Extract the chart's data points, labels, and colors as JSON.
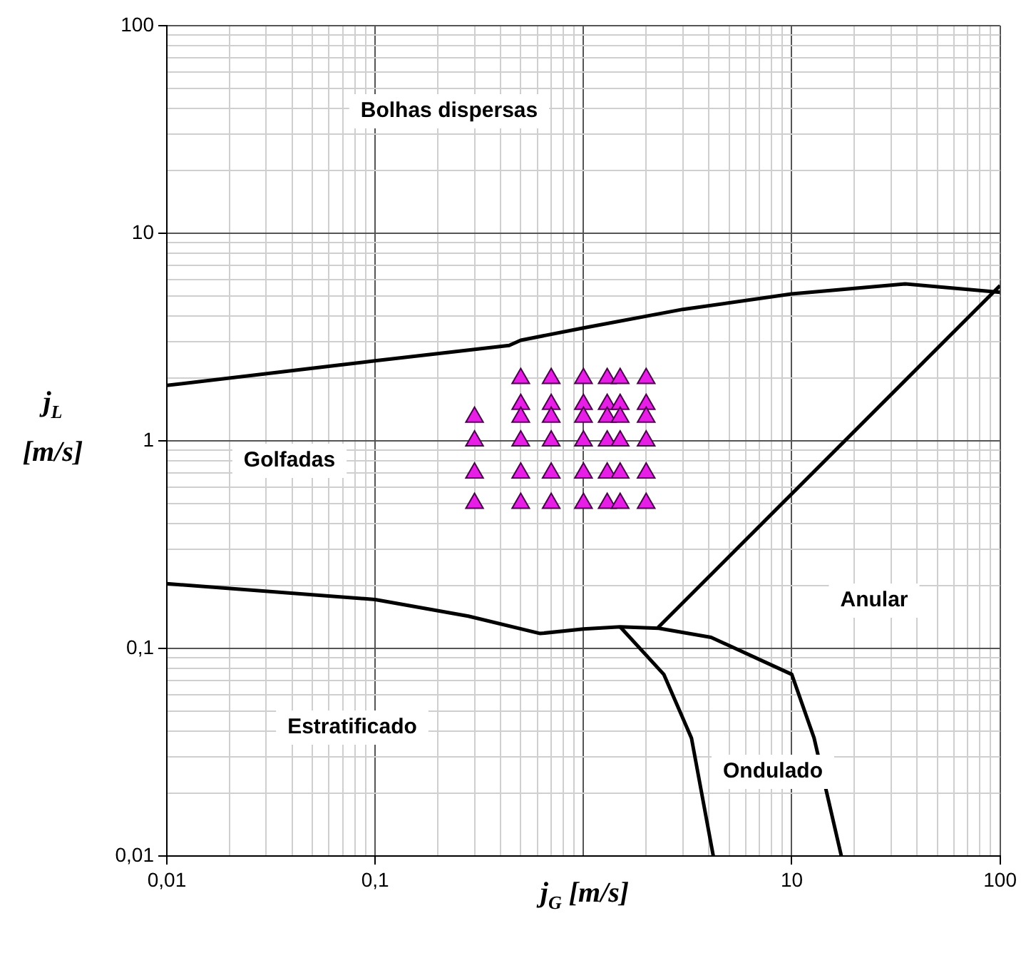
{
  "chart_data": {
    "type": "line",
    "xlabel": "j$_{G}$ [m/s]",
    "ylabel": "j$_{L}$ [m/s]",
    "log": "xy",
    "grid": true,
    "legend": false,
    "xlim": [
      0.01,
      100
    ],
    "ylim": [
      0.01,
      100
    ],
    "xticks": [
      {
        "value": 0.01,
        "label": "0,01"
      },
      {
        "value": 0.02,
        "label": null
      },
      {
        "value": 0.03,
        "label": null
      },
      {
        "value": 0.04,
        "label": null
      },
      {
        "value": 0.05,
        "label": null
      },
      {
        "value": 0.06,
        "label": null
      },
      {
        "value": 0.07,
        "label": null
      },
      {
        "value": 0.08,
        "label": null
      },
      {
        "value": 0.09,
        "label": null
      },
      {
        "value": 0.1,
        "label": "0,1"
      },
      {
        "value": 0.2,
        "label": null
      },
      {
        "value": 0.3,
        "label": null
      },
      {
        "value": 0.4,
        "label": null
      },
      {
        "value": 0.5,
        "label": null
      },
      {
        "value": 0.6,
        "label": null
      },
      {
        "value": 0.7,
        "label": null
      },
      {
        "value": 0.8,
        "label": null
      },
      {
        "value": 0.9,
        "label": null
      },
      {
        "value": 1,
        "label": null
      },
      {
        "value": 2,
        "label": null
      },
      {
        "value": 3,
        "label": null
      },
      {
        "value": 4,
        "label": null
      },
      {
        "value": 5,
        "label": null
      },
      {
        "value": 6,
        "label": null
      },
      {
        "value": 7,
        "label": null
      },
      {
        "value": 8,
        "label": null
      },
      {
        "value": 9,
        "label": null
      },
      10,
      {
        "value": 20,
        "label": null
      },
      {
        "value": 30,
        "label": null
      },
      {
        "value": 40,
        "label": null
      },
      {
        "value": 50,
        "label": null
      },
      {
        "value": 60,
        "label": null
      },
      {
        "value": 70,
        "label": null
      },
      {
        "value": 80,
        "label": null
      },
      {
        "value": 90,
        "label": null
      },
      100
    ],
    "yticks": [
      {
        "value": 0.01,
        "label": "0,01"
      },
      {
        "value": 0.02,
        "label": null
      },
      {
        "value": 0.03,
        "label": null
      },
      {
        "value": 0.04,
        "label": null
      },
      {
        "value": 0.05,
        "label": null
      },
      {
        "value": 0.06,
        "label": null
      },
      {
        "value": 0.07,
        "label": null
      },
      {
        "value": 0.08,
        "label": null
      },
      {
        "value": 0.09,
        "label": null
      },
      {
        "value": 0.1,
        "label": "0,1"
      },
      {
        "value": 0.2,
        "label": null
      },
      {
        "value": 0.3,
        "label": null
      },
      {
        "value": 0.4,
        "label": null
      },
      {
        "value": 0.5,
        "label": null
      },
      {
        "value": 0.6,
        "label": null
      },
      {
        "value": 0.7,
        "label": null
      },
      {
        "value": 0.8,
        "label": null
      },
      {
        "value": 0.9,
        "label": null
      },
      1,
      {
        "value": 2,
        "label": null
      },
      {
        "value": 3,
        "label": null
      },
      {
        "value": 4,
        "label": null
      },
      {
        "value": 5,
        "label": null
      },
      {
        "value": 6,
        "label": null
      },
      {
        "value": 7,
        "label": null
      },
      {
        "value": 8,
        "label": null
      },
      {
        "value": 9,
        "label": null
      },
      10,
      {
        "value": 20,
        "label": null
      },
      {
        "value": 30,
        "label": null
      },
      {
        "value": 40,
        "label": null
      },
      {
        "value": 50,
        "label": null
      },
      {
        "value": 60,
        "label": null
      },
      {
        "value": 70,
        "label": null
      },
      {
        "value": 80,
        "label": null
      },
      {
        "value": 90,
        "label": null
      },
      100
    ],
    "series": [
      {
        "type": "line",
        "color": "#000000",
        "marker": "none",
        "x": [
          0.01,
          0.1,
          0.44,
          0.5,
          1,
          3,
          10,
          35,
          100
        ],
        "values": [
          1.85,
          2.43,
          2.88,
          3.05,
          3.5,
          4.3,
          5.1,
          5.7,
          5.2
        ]
      },
      {
        "type": "line",
        "color": "#000000",
        "marker": "none",
        "x": [
          2.28,
          100
        ],
        "values": [
          0.126,
          5.6
        ]
      },
      {
        "type": "line",
        "color": "#000000",
        "marker": "none",
        "x": [
          0.01,
          0.1,
          0.28,
          0.62,
          1,
          1.5,
          2.3,
          4.1,
          10,
          12.8,
          17.3
        ],
        "values": [
          0.205,
          0.172,
          0.143,
          0.118,
          0.124,
          0.127,
          0.125,
          0.113,
          0.075,
          0.037,
          0.01
        ]
      },
      {
        "type": "line",
        "color": "#000000",
        "marker": "none",
        "x": [
          1.5,
          2.43,
          3.3,
          4.2
        ],
        "values": [
          0.127,
          0.075,
          0.037,
          0.01
        ]
      },
      {
        "type": "scatter",
        "color": "#e61ee6",
        "marker": "triangle",
        "x": [
          0.3,
          0.3,
          0.3,
          0.3,
          0.5,
          0.5,
          0.5,
          0.5,
          0.5,
          0.5,
          0.7,
          0.7,
          0.7,
          0.7,
          0.7,
          0.7,
          1,
          1,
          1,
          1,
          1,
          1,
          1.3,
          1.3,
          1.3,
          1.3,
          1.3,
          1.3,
          1.5,
          1.5,
          1.5,
          1.5,
          1.5,
          1.5,
          2,
          2,
          2,
          2,
          2,
          2
        ],
        "values": [
          1.3,
          1,
          0.7,
          0.5,
          2,
          1.5,
          1.3,
          1,
          0.7,
          0.5,
          2,
          1.5,
          1.3,
          1,
          0.7,
          0.5,
          2,
          1.5,
          1.3,
          1,
          0.7,
          0.5,
          2,
          1.5,
          1.3,
          1,
          0.7,
          0.5,
          2,
          1.5,
          1.3,
          1,
          0.7,
          0.5,
          2,
          1.5,
          1.3,
          1,
          0.7,
          0.5
        ]
      }
    ],
    "annotations": [
      "Bolhas dispersas",
      "Golfadas",
      "Anular",
      "Estratificado",
      "Ondulado"
    ]
  }
}
